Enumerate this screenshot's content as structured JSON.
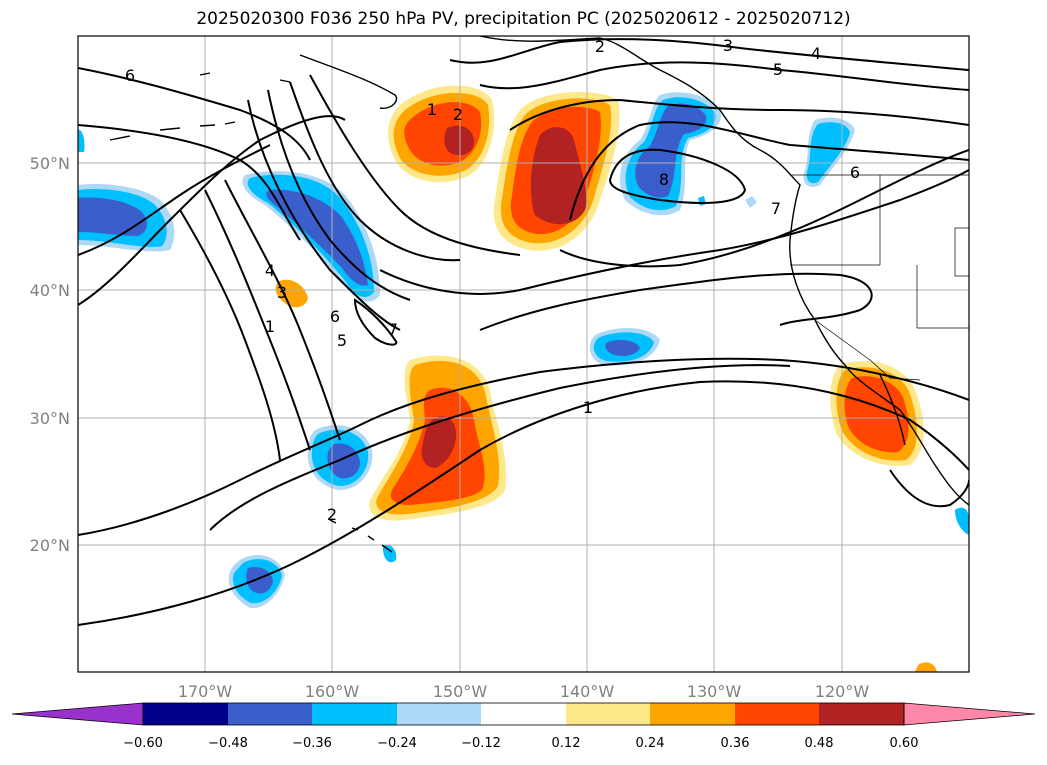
{
  "title": "2025020300 F036 250 hPa PV, precipitation PC (2025020612 - 2025020712)",
  "map": {
    "projection": "PlateCarree",
    "lon_range": [
      -180,
      -110
    ],
    "lat_range": [
      10,
      60
    ],
    "lat_labels": [
      "50°N",
      "40°N",
      "30°N",
      "20°N"
    ],
    "lon_labels": [
      "170°W",
      "160°W",
      "150°W",
      "140°W",
      "130°W",
      "120°W"
    ],
    "gridlines": true,
    "coastlines": true,
    "pv_contour_labels": [
      "1",
      "2",
      "3",
      "4",
      "5",
      "6",
      "7",
      "8"
    ],
    "pv_contours_color": "#000000"
  },
  "colorbar": {
    "tick_labels": [
      "−0.60",
      "−0.48",
      "−0.36",
      "−0.24",
      "−0.12",
      "0.12",
      "0.24",
      "0.36",
      "0.48",
      "0.60"
    ],
    "colors": [
      "#9932cc",
      "#00008b",
      "#3a5fcd",
      "#00bfff",
      "#add8f6",
      "#ffffff",
      "#ffe88a",
      "#ffa500",
      "#ff4500",
      "#b22222",
      "#ff88aa"
    ],
    "extend": "both"
  }
}
